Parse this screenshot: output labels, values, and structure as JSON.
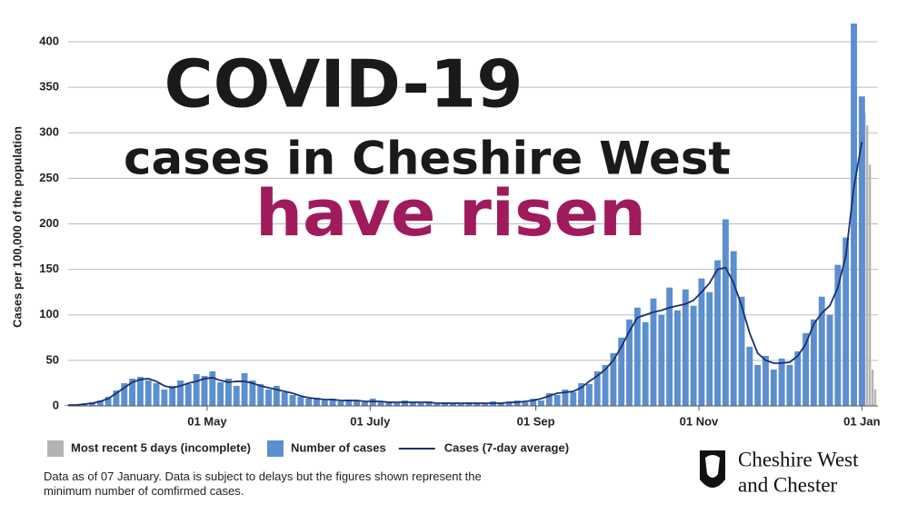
{
  "chart_data": {
    "type": "bar",
    "title": "COVID-19",
    "subtitle": "cases in Cheshire West",
    "headline": "have risen",
    "y_label": "Cases per 100,000 of the population",
    "note": "Data as of 07 January. Data is subject to delays but the figures shown represent the minimum number of comfirmed cases.",
    "logo": [
      "Cheshire West",
      "and Chester"
    ],
    "xlim": [
      0,
      303
    ],
    "xticks": [
      {
        "value": 52,
        "label": "01 May"
      },
      {
        "value": 113,
        "label": "01 July"
      },
      {
        "value": 175,
        "label": "01 Sep"
      },
      {
        "value": 236,
        "label": "01 Nov"
      },
      {
        "value": 297,
        "label": "01 Jan"
      }
    ],
    "ylim": [
      0,
      400
    ],
    "yticks": [
      0,
      50,
      100,
      150,
      200,
      250,
      300,
      350,
      400
    ],
    "grid": true,
    "x": [
      0,
      3,
      6,
      9,
      12,
      15,
      18,
      21,
      24,
      27,
      30,
      33,
      36,
      39,
      42,
      45,
      48,
      51,
      54,
      57,
      60,
      63,
      66,
      69,
      72,
      75,
      78,
      81,
      84,
      87,
      90,
      93,
      96,
      99,
      102,
      105,
      108,
      111,
      114,
      117,
      120,
      123,
      126,
      129,
      132,
      135,
      138,
      141,
      144,
      147,
      150,
      153,
      156,
      159,
      162,
      165,
      168,
      171,
      174,
      177,
      180,
      183,
      186,
      189,
      192,
      195,
      198,
      201,
      204,
      207,
      210,
      213,
      216,
      219,
      222,
      225,
      228,
      231,
      234,
      237,
      240,
      243,
      246,
      249,
      252,
      255,
      258,
      261,
      264,
      267,
      270,
      273,
      276,
      279,
      282,
      285,
      288,
      291,
      294,
      297
    ],
    "series": [
      {
        "name": "Most recent 5 days (incomplete)",
        "type": "bar",
        "color": "#b3b3b3",
        "x": [
          298,
          299,
          300,
          301,
          302
        ],
        "values": [
          322,
          308,
          265,
          40,
          18
        ]
      },
      {
        "name": "Number of cases",
        "type": "bar",
        "color": "#5b8fcf",
        "values": [
          1,
          2,
          2,
          4,
          6,
          10,
          17,
          25,
          30,
          32,
          28,
          25,
          18,
          22,
          28,
          24,
          35,
          33,
          38,
          26,
          30,
          22,
          36,
          28,
          24,
          18,
          22,
          15,
          12,
          10,
          8,
          9,
          6,
          8,
          5,
          7,
          6,
          4,
          8,
          4,
          5,
          3,
          6,
          4,
          3,
          5,
          2,
          4,
          3,
          2,
          4,
          3,
          2,
          5,
          3,
          4,
          6,
          4,
          8,
          6,
          14,
          12,
          18,
          15,
          25,
          24,
          38,
          45,
          58,
          75,
          95,
          108,
          92,
          118,
          100,
          130,
          105,
          128,
          110,
          140,
          125,
          160,
          205,
          170,
          120,
          65,
          45,
          55,
          40,
          52,
          45,
          60,
          80,
          95,
          120,
          100,
          155,
          185,
          420,
          340
        ]
      },
      {
        "name": "Cases (7-day average)",
        "type": "line",
        "color": "#1b2f6e",
        "values": [
          1,
          1,
          2,
          3,
          5,
          8,
          14,
          20,
          26,
          29,
          30,
          27,
          22,
          20,
          22,
          25,
          27,
          30,
          31,
          28,
          26,
          27,
          27,
          25,
          22,
          20,
          18,
          16,
          14,
          11,
          9,
          8,
          7,
          7,
          6,
          6,
          6,
          5,
          5,
          5,
          4,
          4,
          4,
          4,
          4,
          4,
          3,
          3,
          3,
          3,
          3,
          3,
          3,
          3,
          3,
          4,
          4,
          5,
          6,
          8,
          11,
          14,
          15,
          16,
          20,
          27,
          33,
          40,
          50,
          65,
          82,
          97,
          100,
          103,
          105,
          108,
          110,
          112,
          116,
          125,
          135,
          150,
          152,
          135,
          110,
          80,
          58,
          50,
          47,
          47,
          48,
          55,
          68,
          90,
          102,
          110,
          130,
          165,
          240,
          290
        ]
      }
    ]
  }
}
